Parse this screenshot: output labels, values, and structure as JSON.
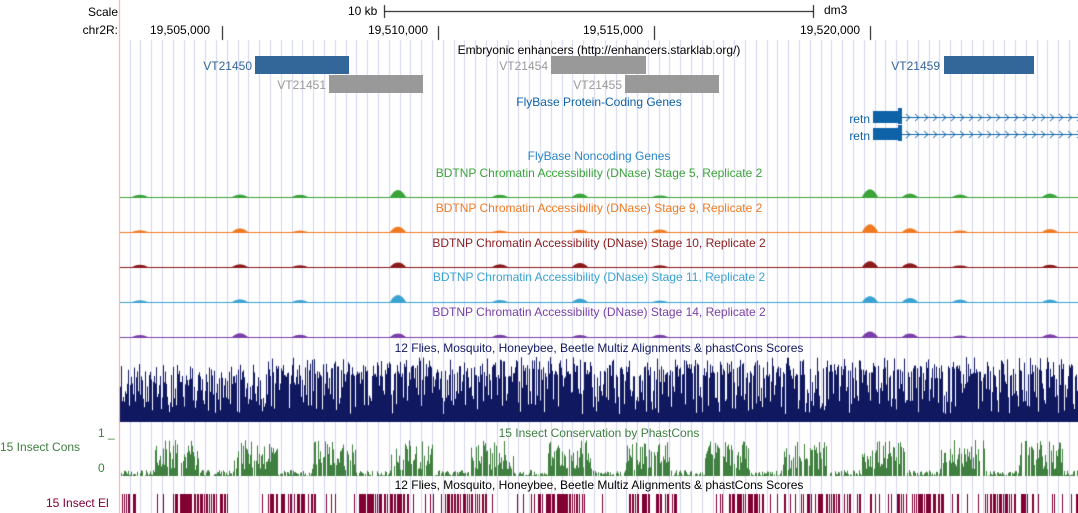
{
  "scale": {
    "label": "Scale",
    "bar_label": "10 kb",
    "assembly": "dm3"
  },
  "ruler": {
    "chrom_label": "chr2R:",
    "ticks": [
      "19,505,000",
      "19,510,000",
      "19,515,000",
      "19,520,000"
    ]
  },
  "tracks": {
    "enhancers": {
      "title": "Embryonic enhancers (http://enhancers.starklab.org/)",
      "items": [
        {
          "name": "VT21450",
          "color": "#336699"
        },
        {
          "name": "VT21451",
          "color": "#999999"
        },
        {
          "name": "VT21454",
          "color": "#999999"
        },
        {
          "name": "VT21455",
          "color": "#999999"
        },
        {
          "name": "VT21459",
          "color": "#336699"
        }
      ]
    },
    "flybase_coding": {
      "title": "FlyBase Protein-Coding Genes",
      "color": "#0d62a8",
      "genes": [
        {
          "name": "retn"
        },
        {
          "name": "retn"
        }
      ]
    },
    "flybase_noncoding": {
      "title": "FlyBase Noncoding Genes",
      "color": "#2a86c8"
    },
    "dnase": [
      {
        "title": "BDTNP Chromatin Accessibility (DNase) Stage 5, Replicate 2",
        "color": "#3aa33a"
      },
      {
        "title": "BDTNP Chromatin Accessibility (DNase) Stage 9, Replicate 2",
        "color": "#f07a22"
      },
      {
        "title": "BDTNP Chromatin Accessibility (DNase) Stage 10, Replicate 2",
        "color": "#8b1a1a"
      },
      {
        "title": "BDTNP Chromatin Accessibility (DNase) Stage 11, Replicate 2",
        "color": "#3aa3d1"
      },
      {
        "title": "BDTNP Chromatin Accessibility (DNase) Stage 14, Replicate 2",
        "color": "#7a3fa8"
      }
    ],
    "multiz": {
      "title": "12 Flies, Mosquito, Honeybee, Beetle Multiz Alignments & phastCons Scores",
      "color": "#101860"
    },
    "cons": {
      "title": "15 Insect Conservation by PhastCons",
      "left_label": "15 Insect Cons",
      "axis_max": "1 _",
      "axis_min": "0",
      "color": "#3f7f3f"
    },
    "elements": {
      "title": "12 Flies, Mosquito, Honeybee, Beetle Multiz Alignments & phastCons Scores",
      "left_label": "15 Insect El",
      "color": "#800033"
    }
  },
  "colors": {
    "grid": "#d4d4f0",
    "left_border": "#f2a6a6"
  }
}
